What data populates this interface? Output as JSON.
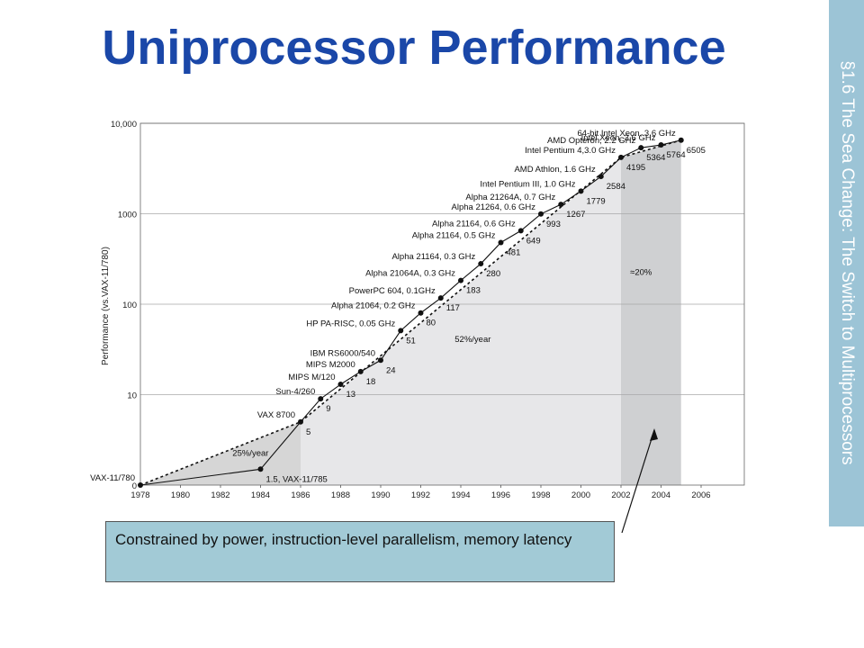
{
  "slide": {
    "title": "Uniprocessor Performance",
    "section_tab": "§1.6 The Sea Change: The Switch to Multiprocessors",
    "callout": "Constrained by power, instruction-level parallelism, memory latency"
  },
  "chart_data": {
    "type": "line",
    "ylabel": "Performance (vs.VAX-11/780)",
    "xlabel": "",
    "xlim": [
      1978,
      2007
    ],
    "x_ticks": [
      "1978",
      "1980",
      "1982",
      "1984",
      "1986",
      "1988",
      "1990",
      "1992",
      "1994",
      "1996",
      "1998",
      "2000",
      "2002",
      "2004",
      "2006"
    ],
    "y_ticks": [
      "0",
      "10",
      "100",
      "1000",
      "10,000"
    ],
    "y_scale": "log",
    "grid": "horizontal",
    "growth_labels": [
      {
        "text": "25%/year",
        "x": 1983.5,
        "y": 2.1
      },
      {
        "text": "52%/year",
        "x": 1994.6,
        "y": 38
      },
      {
        "text": "≈20%",
        "x": 2003.0,
        "y": 210
      }
    ],
    "shaded_regions": [
      {
        "from": 1978,
        "to": 1986,
        "shade": "#d6d6d6"
      },
      {
        "from": 1986,
        "to": 2002,
        "shade": "#e7e7e9"
      },
      {
        "from": 2002,
        "to": 2005,
        "shade": "#cfd0d2"
      }
    ],
    "series": [
      {
        "style": "solid",
        "points": [
          {
            "x": 1978,
            "y": 1,
            "label": "VAX-11/780",
            "value_label": ""
          },
          {
            "x": 1984,
            "y": 1.5,
            "label": "",
            "value_label": "1.5, VAX-11/785"
          },
          {
            "x": 1986,
            "y": 5,
            "label": "VAX 8700",
            "value_label": "5"
          },
          {
            "x": 1987,
            "y": 9,
            "label": "Sun-4/260",
            "value_label": "9"
          },
          {
            "x": 1988,
            "y": 13,
            "label": "MIPS M/120",
            "value_label": "13"
          },
          {
            "x": 1989,
            "y": 18,
            "label": "MIPS M2000",
            "value_label": "18"
          },
          {
            "x": 1990,
            "y": 24,
            "label": "IBM RS6000/540",
            "value_label": "24"
          },
          {
            "x": 1991,
            "y": 51,
            "label": "HP PA-RISC, 0.05 GHz",
            "value_label": "51"
          },
          {
            "x": 1992,
            "y": 80,
            "label": "Alpha 21064, 0.2 GHz",
            "value_label": "80"
          },
          {
            "x": 1993,
            "y": 117,
            "label": "PowerPC 604, 0.1GHz",
            "value_label": "117"
          },
          {
            "x": 1994,
            "y": 183,
            "label": "Alpha 21064A, 0.3 GHz",
            "value_label": "183"
          },
          {
            "x": 1995,
            "y": 280,
            "label": "Alpha 21164, 0.3 GHz",
            "value_label": "280"
          },
          {
            "x": 1996,
            "y": 481,
            "label": "Alpha 21164, 0.5 GHz",
            "value_label": "481"
          },
          {
            "x": 1997,
            "y": 649,
            "label": "Alpha 21164, 0.6 GHz",
            "value_label": "649"
          },
          {
            "x": 1998,
            "y": 993,
            "label": "Alpha 21264, 0.6 GHz",
            "value_label": "993"
          },
          {
            "x": 1999,
            "y": 1267,
            "label": "Alpha 21264A, 0.7 GHz",
            "value_label": "1267"
          },
          {
            "x": 2000,
            "y": 1779,
            "label": "Intel Pentium III, 1.0 GHz",
            "value_label": "1779"
          },
          {
            "x": 2001,
            "y": 2584,
            "label": "AMD Athlon, 1.6 GHz",
            "value_label": "2584"
          },
          {
            "x": 2002,
            "y": 4195,
            "label": "Intel Pentium 4,3.0 GHz",
            "value_label": "4195"
          },
          {
            "x": 2003,
            "y": 5364,
            "label": "AMD Opteron, 2.2 GHz",
            "value_label": "5364"
          },
          {
            "x": 2004,
            "y": 5764,
            "label": "Intel Xeon, 3.6 GHz",
            "value_label": "5764"
          },
          {
            "x": 2005,
            "y": 6505,
            "label": "64-bit Intel Xeon, 3.6 GHz",
            "value_label": "6505"
          }
        ]
      }
    ]
  }
}
